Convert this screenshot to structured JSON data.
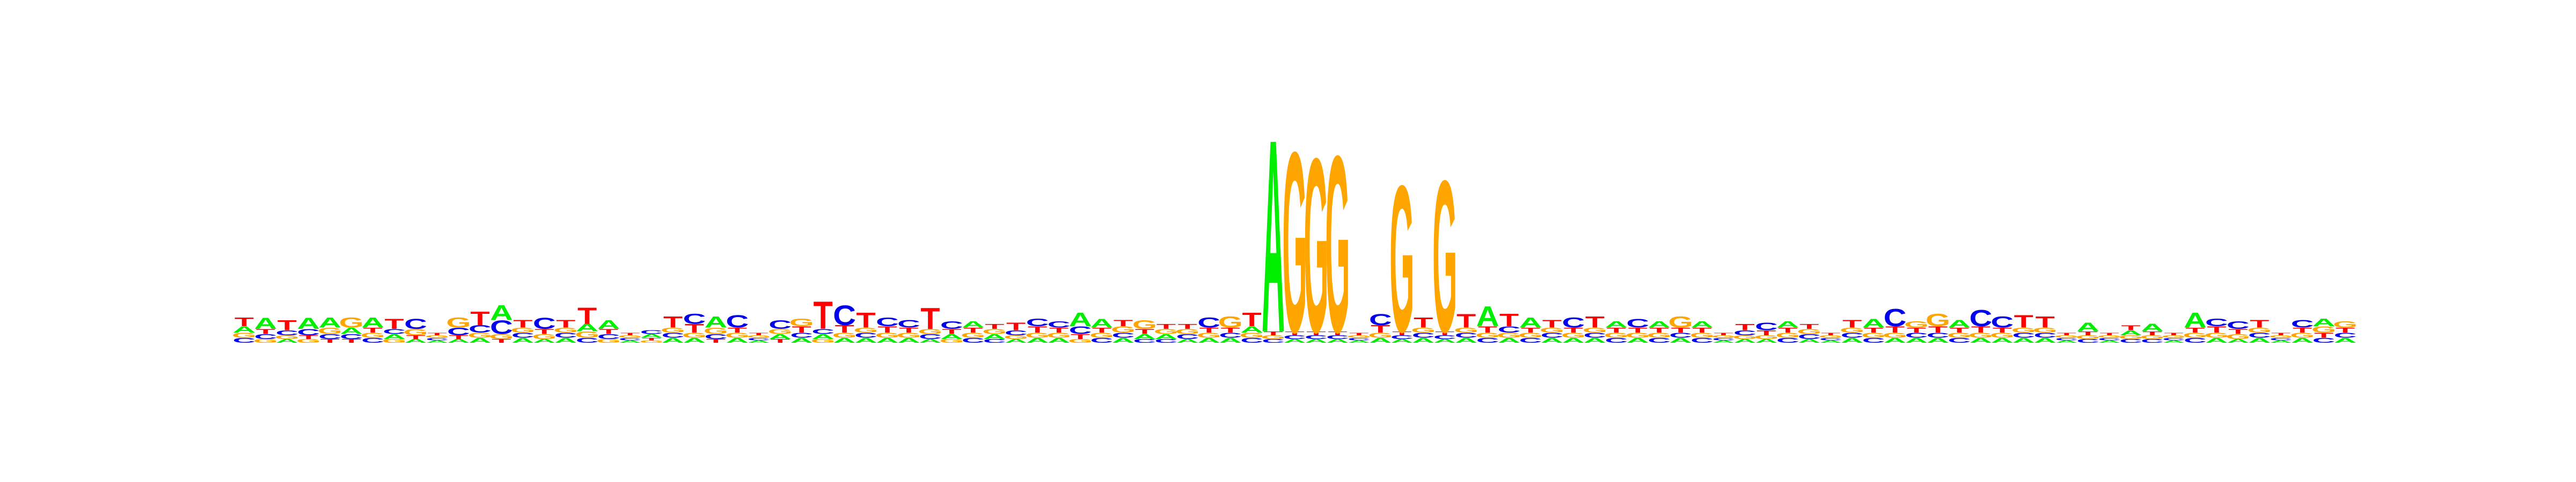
{
  "chart_data": {
    "type": "sequence-logo",
    "title": "",
    "xlabel": "",
    "ylabel": "",
    "ylim": [
      0,
      2
    ],
    "alphabet": [
      "A",
      "C",
      "G",
      "T"
    ],
    "colors": {
      "A": "#00ee00",
      "C": "#0000ee",
      "G": "#ffa500",
      "T": "#ff0000"
    },
    "positions": [
      {
        "A": 0.05,
        "C": 0.04,
        "G": 0.04,
        "T": 0.07
      },
      {
        "A": 0.09,
        "C": 0.04,
        "G": 0.03,
        "T": 0.04
      },
      {
        "A": 0.03,
        "C": 0.04,
        "G": 0.03,
        "T": 0.08
      },
      {
        "A": 0.09,
        "C": 0.05,
        "G": 0.03,
        "T": 0.03
      },
      {
        "A": 0.08,
        "C": 0.04,
        "G": 0.05,
        "T": 0.03
      },
      {
        "A": 0.05,
        "C": 0.04,
        "G": 0.08,
        "T": 0.03
      },
      {
        "A": 0.08,
        "C": 0.04,
        "G": 0.04,
        "T": 0.04
      },
      {
        "A": 0.04,
        "C": 0.04,
        "G": 0.03,
        "T": 0.08
      },
      {
        "A": 0.03,
        "C": 0.08,
        "G": 0.05,
        "T": 0.03
      },
      {
        "A": 0.02,
        "C": 0.02,
        "G": 0.02,
        "T": 0.02
      },
      {
        "A": 0.03,
        "C": 0.06,
        "G": 0.08,
        "T": 0.03
      },
      {
        "A": 0.04,
        "C": 0.06,
        "G": 0.04,
        "T": 0.11
      },
      {
        "A": 0.12,
        "C": 0.11,
        "G": 0.04,
        "T": 0.03
      },
      {
        "A": 0.04,
        "C": 0.04,
        "G": 0.04,
        "T": 0.06
      },
      {
        "A": 0.03,
        "C": 0.09,
        "G": 0.04,
        "T": 0.04
      },
      {
        "A": 0.04,
        "C": 0.04,
        "G": 0.04,
        "T": 0.06
      },
      {
        "A": 0.06,
        "C": 0.04,
        "G": 0.05,
        "T": 0.13
      },
      {
        "A": 0.07,
        "C": 0.04,
        "G": 0.03,
        "T": 0.04
      },
      {
        "A": 0.02,
        "C": 0.02,
        "G": 0.02,
        "T": 0.02
      },
      {
        "A": 0.03,
        "C": 0.03,
        "G": 0.02,
        "T": 0.02
      },
      {
        "A": 0.04,
        "C": 0.04,
        "G": 0.04,
        "T": 0.09
      },
      {
        "A": 0.04,
        "C": 0.08,
        "G": 0.04,
        "T": 0.07
      },
      {
        "A": 0.09,
        "C": 0.04,
        "G": 0.05,
        "T": 0.03
      },
      {
        "A": 0.04,
        "C": 0.1,
        "G": 0.04,
        "T": 0.04
      },
      {
        "A": 0.02,
        "C": 0.02,
        "G": 0.02,
        "T": 0.02
      },
      {
        "A": 0.04,
        "C": 0.07,
        "G": 0.04,
        "T": 0.03
      },
      {
        "A": 0.04,
        "C": 0.04,
        "G": 0.06,
        "T": 0.05
      },
      {
        "A": 0.04,
        "C": 0.04,
        "G": 0.03,
        "T": 0.22
      },
      {
        "A": 0.04,
        "C": 0.16,
        "G": 0.04,
        "T": 0.06
      },
      {
        "A": 0.04,
        "C": 0.04,
        "G": 0.04,
        "T": 0.12
      },
      {
        "A": 0.04,
        "C": 0.07,
        "G": 0.04,
        "T": 0.05
      },
      {
        "A": 0.04,
        "C": 0.06,
        "G": 0.04,
        "T": 0.04
      },
      {
        "A": 0.03,
        "C": 0.04,
        "G": 0.04,
        "T": 0.17
      },
      {
        "A": 0.04,
        "C": 0.06,
        "G": 0.03,
        "T": 0.04
      },
      {
        "A": 0.05,
        "C": 0.04,
        "G": 0.04,
        "T": 0.04
      },
      {
        "A": 0.04,
        "C": 0.03,
        "G": 0.04,
        "T": 0.04
      },
      {
        "A": 0.03,
        "C": 0.04,
        "G": 0.03,
        "T": 0.06
      },
      {
        "A": 0.04,
        "C": 0.06,
        "G": 0.04,
        "T": 0.05
      },
      {
        "A": 0.04,
        "C": 0.05,
        "G": 0.04,
        "T": 0.04
      },
      {
        "A": 0.11,
        "C": 0.06,
        "G": 0.03,
        "T": 0.04
      },
      {
        "A": 0.07,
        "C": 0.04,
        "G": 0.04,
        "T": 0.04
      },
      {
        "A": 0.04,
        "C": 0.04,
        "G": 0.05,
        "T": 0.05
      },
      {
        "A": 0.04,
        "C": 0.03,
        "G": 0.07,
        "T": 0.04
      },
      {
        "A": 0.04,
        "C": 0.03,
        "G": 0.04,
        "T": 0.04
      },
      {
        "A": 0.03,
        "C": 0.04,
        "G": 0.04,
        "T": 0.04
      },
      {
        "A": 0.04,
        "C": 0.08,
        "G": 0.04,
        "T": 0.04
      },
      {
        "A": 0.04,
        "C": 0.04,
        "G": 0.09,
        "T": 0.04
      },
      {
        "A": 0.05,
        "C": 0.04,
        "G": 0.04,
        "T": 0.11
      },
      {
        "A": 1.55,
        "C": 0.03,
        "G": 0.03,
        "T": 0.03
      },
      {
        "A": 0.03,
        "C": 0.03,
        "G": 1.45,
        "T": 0.03
      },
      {
        "A": 0.03,
        "C": 0.03,
        "G": 1.4,
        "T": 0.03
      },
      {
        "A": 0.03,
        "C": 0.03,
        "G": 1.42,
        "T": 0.03
      },
      {
        "A": 0.02,
        "C": 0.02,
        "G": 0.02,
        "T": 0.02
      },
      {
        "A": 0.04,
        "C": 0.09,
        "G": 0.04,
        "T": 0.06
      },
      {
        "A": 0.03,
        "C": 0.03,
        "G": 1.18,
        "T": 0.03
      },
      {
        "A": 0.04,
        "C": 0.04,
        "G": 0.04,
        "T": 0.08
      },
      {
        "A": 0.03,
        "C": 0.03,
        "G": 1.22,
        "T": 0.03
      },
      {
        "A": 0.04,
        "C": 0.04,
        "G": 0.04,
        "T": 0.11
      },
      {
        "A": 0.16,
        "C": 0.04,
        "G": 0.04,
        "T": 0.05
      },
      {
        "A": 0.04,
        "C": 0.05,
        "G": 0.04,
        "T": 0.1
      },
      {
        "A": 0.08,
        "C": 0.04,
        "G": 0.04,
        "T": 0.04
      },
      {
        "A": 0.04,
        "C": 0.04,
        "G": 0.04,
        "T": 0.06
      },
      {
        "A": 0.04,
        "C": 0.08,
        "G": 0.04,
        "T": 0.04
      },
      {
        "A": 0.04,
        "C": 0.04,
        "G": 0.04,
        "T": 0.09
      },
      {
        "A": 0.05,
        "C": 0.04,
        "G": 0.04,
        "T": 0.04
      },
      {
        "A": 0.04,
        "C": 0.07,
        "G": 0.04,
        "T": 0.04
      },
      {
        "A": 0.05,
        "C": 0.04,
        "G": 0.04,
        "T": 0.04
      },
      {
        "A": 0.04,
        "C": 0.04,
        "G": 0.09,
        "T": 0.04
      },
      {
        "A": 0.05,
        "C": 0.04,
        "G": 0.04,
        "T": 0.04
      },
      {
        "A": 0.02,
        "C": 0.02,
        "G": 0.02,
        "T": 0.02
      },
      {
        "A": 0.03,
        "C": 0.04,
        "G": 0.03,
        "T": 0.05
      },
      {
        "A": 0.03,
        "C": 0.06,
        "G": 0.03,
        "T": 0.04
      },
      {
        "A": 0.05,
        "C": 0.04,
        "G": 0.04,
        "T": 0.04
      },
      {
        "A": 0.03,
        "C": 0.04,
        "G": 0.04,
        "T": 0.04
      },
      {
        "A": 0.02,
        "C": 0.02,
        "G": 0.02,
        "T": 0.02
      },
      {
        "A": 0.04,
        "C": 0.04,
        "G": 0.04,
        "T": 0.06
      },
      {
        "A": 0.07,
        "C": 0.04,
        "G": 0.04,
        "T": 0.04
      },
      {
        "A": 0.04,
        "C": 0.14,
        "G": 0.04,
        "T": 0.05
      },
      {
        "A": 0.04,
        "C": 0.04,
        "G": 0.05,
        "T": 0.04
      },
      {
        "A": 0.04,
        "C": 0.04,
        "G": 0.1,
        "T": 0.05
      },
      {
        "A": 0.06,
        "C": 0.04,
        "G": 0.04,
        "T": 0.04
      },
      {
        "A": 0.04,
        "C": 0.13,
        "G": 0.04,
        "T": 0.05
      },
      {
        "A": 0.04,
        "C": 0.09,
        "G": 0.04,
        "T": 0.04
      },
      {
        "A": 0.04,
        "C": 0.04,
        "G": 0.04,
        "T": 0.1
      },
      {
        "A": 0.04,
        "C": 0.04,
        "G": 0.04,
        "T": 0.09
      },
      {
        "A": 0.02,
        "C": 0.02,
        "G": 0.02,
        "T": 0.02
      },
      {
        "A": 0.07,
        "C": 0.03,
        "G": 0.03,
        "T": 0.03
      },
      {
        "A": 0.02,
        "C": 0.02,
        "G": 0.02,
        "T": 0.02
      },
      {
        "A": 0.04,
        "C": 0.03,
        "G": 0.03,
        "T": 0.04
      },
      {
        "A": 0.06,
        "C": 0.03,
        "G": 0.03,
        "T": 0.03
      },
      {
        "A": 0.02,
        "C": 0.02,
        "G": 0.02,
        "T": 0.02
      },
      {
        "A": 0.12,
        "C": 0.04,
        "G": 0.04,
        "T": 0.04
      },
      {
        "A": 0.04,
        "C": 0.06,
        "G": 0.04,
        "T": 0.05
      },
      {
        "A": 0.03,
        "C": 0.06,
        "G": 0.04,
        "T": 0.04
      },
      {
        "A": 0.04,
        "C": 0.04,
        "G": 0.04,
        "T": 0.06
      },
      {
        "A": 0.02,
        "C": 0.02,
        "G": 0.02,
        "T": 0.02
      },
      {
        "A": 0.04,
        "C": 0.06,
        "G": 0.04,
        "T": 0.04
      },
      {
        "A": 0.06,
        "C": 0.04,
        "G": 0.05,
        "T": 0.04
      },
      {
        "A": 0.04,
        "C": 0.04,
        "G": 0.05,
        "T": 0.04
      }
    ]
  }
}
